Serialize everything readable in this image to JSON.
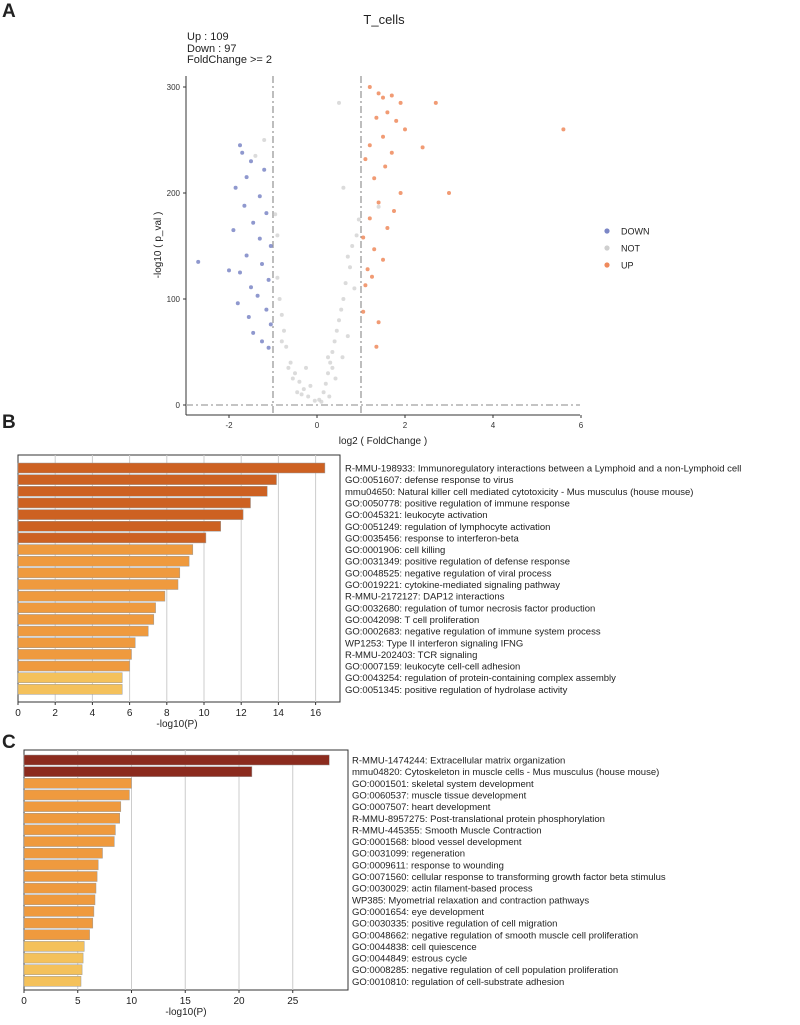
{
  "panels": {
    "a": "A",
    "b": "B",
    "c": "C"
  },
  "volcano": {
    "title": "T_cells",
    "info": {
      "up": "Up :  109",
      "down": "Down : 97",
      "fold": "FoldChange >= 2"
    },
    "xlabel": "log2 ( FoldChange )",
    "ylabel": "-log10 ( p_val )",
    "xticks": [
      "-2",
      "0",
      "2",
      "4",
      "6"
    ],
    "yticks": [
      "0",
      "100",
      "200",
      "300"
    ],
    "legend": [
      {
        "label": "DOWN",
        "color": "#7b86c6"
      },
      {
        "label": "NOT",
        "color": "#cfcfcf"
      },
      {
        "label": "UP",
        "color": "#ef8a5c"
      }
    ]
  },
  "chart_data": [
    {
      "type": "scatter",
      "title": "T_cells",
      "xlabel": "log2 ( FoldChange )",
      "ylabel": "-log10 ( p_val )",
      "xlim": [
        -3.1,
        6
      ],
      "ylim": [
        -10,
        310
      ],
      "thresholds": {
        "x": [
          -1,
          1
        ],
        "y": 0
      },
      "series": [
        {
          "name": "UP",
          "color": "#ef8a5c",
          "points": [
            [
              5.6,
              260
            ],
            [
              3.0,
              200
            ],
            [
              2.7,
              285
            ],
            [
              2.4,
              243
            ],
            [
              1.2,
              300
            ],
            [
              1.4,
              294
            ],
            [
              1.5,
              290
            ],
            [
              1.7,
              292
            ],
            [
              1.9,
              285
            ],
            [
              1.6,
              276
            ],
            [
              1.35,
              271
            ],
            [
              1.8,
              268
            ],
            [
              2.0,
              260
            ],
            [
              1.5,
              253
            ],
            [
              1.2,
              245
            ],
            [
              1.7,
              238
            ],
            [
              1.1,
              232
            ],
            [
              1.55,
              225
            ],
            [
              1.3,
              214
            ],
            [
              1.9,
              200
            ],
            [
              1.4,
              191
            ],
            [
              1.75,
              183
            ],
            [
              1.2,
              176
            ],
            [
              1.6,
              167
            ],
            [
              1.05,
              158
            ],
            [
              1.3,
              147
            ],
            [
              1.5,
              137
            ],
            [
              1.15,
              128
            ],
            [
              1.25,
              121
            ],
            [
              1.1,
              113
            ],
            [
              1.4,
              78
            ],
            [
              1.35,
              55
            ],
            [
              1.05,
              88
            ]
          ]
        },
        {
          "name": "DOWN",
          "color": "#7b86c6",
          "points": [
            [
              -2.7,
              135
            ],
            [
              -2.0,
              127
            ],
            [
              -1.75,
              245
            ],
            [
              -1.7,
              238
            ],
            [
              -1.5,
              230
            ],
            [
              -1.2,
              222
            ],
            [
              -1.6,
              215
            ],
            [
              -1.85,
              205
            ],
            [
              -1.3,
              197
            ],
            [
              -1.65,
              188
            ],
            [
              -1.15,
              181
            ],
            [
              -1.45,
              172
            ],
            [
              -1.9,
              165
            ],
            [
              -1.3,
              157
            ],
            [
              -1.05,
              150
            ],
            [
              -1.6,
              141
            ],
            [
              -1.25,
              133
            ],
            [
              -1.75,
              125
            ],
            [
              -1.1,
              118
            ],
            [
              -1.5,
              111
            ],
            [
              -1.35,
              103
            ],
            [
              -1.8,
              96
            ],
            [
              -1.15,
              90
            ],
            [
              -1.55,
              83
            ],
            [
              -1.05,
              76
            ],
            [
              -1.45,
              68
            ],
            [
              -1.25,
              60
            ],
            [
              -1.1,
              54
            ]
          ]
        },
        {
          "name": "NOT",
          "color": "#cfcfcf",
          "points": [
            [
              0.8,
              150
            ],
            [
              0.7,
              140
            ],
            [
              0.75,
              130
            ],
            [
              0.65,
              115
            ],
            [
              0.6,
              100
            ],
            [
              0.55,
              90
            ],
            [
              0.5,
              80
            ],
            [
              0.45,
              70
            ],
            [
              0.4,
              60
            ],
            [
              0.35,
              50
            ],
            [
              0.3,
              40
            ],
            [
              0.25,
              30
            ],
            [
              0.2,
              20
            ],
            [
              0.15,
              12
            ],
            [
              0.05,
              5
            ],
            [
              -0.05,
              4
            ],
            [
              -0.2,
              8
            ],
            [
              -0.3,
              15
            ],
            [
              -0.4,
              22
            ],
            [
              -0.5,
              30
            ],
            [
              -0.6,
              40
            ],
            [
              -0.7,
              55
            ],
            [
              -0.75,
              70
            ],
            [
              -0.8,
              85
            ],
            [
              -0.85,
              100
            ],
            [
              -0.9,
              120
            ],
            [
              -0.55,
              25
            ],
            [
              -0.45,
              12
            ],
            [
              0.95,
              175
            ],
            [
              0.9,
              160
            ],
            [
              -0.9,
              160
            ],
            [
              -0.95,
              180
            ],
            [
              -0.65,
              35
            ],
            [
              0.58,
              45
            ],
            [
              0.42,
              25
            ],
            [
              -0.35,
              10
            ],
            [
              0.1,
              3
            ],
            [
              0.28,
              8
            ],
            [
              0.7,
              65
            ],
            [
              -0.8,
              60
            ],
            [
              -1.2,
              250
            ],
            [
              -1.4,
              235
            ],
            [
              0.5,
              285
            ],
            [
              1.4,
              187
            ],
            [
              0.6,
              205
            ],
            [
              0.25,
              45
            ],
            [
              0.35,
              35
            ],
            [
              -0.25,
              35
            ],
            [
              -0.15,
              18
            ],
            [
              0.85,
              110
            ]
          ]
        }
      ]
    },
    {
      "type": "bar",
      "orientation": "horizontal",
      "xlabel": "-log10(P)",
      "xlim": [
        0,
        17.5
      ],
      "xticks": [
        "0",
        "2",
        "4",
        "6",
        "8",
        "10",
        "12",
        "14",
        "16"
      ],
      "categories": [
        "R-MMU-198933: Immunoregulatory interactions between a Lymphoid and a non-Lymphoid cell",
        "GO:0051607: defense response to virus",
        "mmu04650: Natural killer cell mediated cytotoxicity - Mus musculus (house mouse)",
        "GO:0050778: positive regulation of immune response",
        "GO:0045321: leukocyte activation",
        "GO:0051249: regulation of lymphocyte activation",
        "GO:0035456: response to interferon-beta",
        "GO:0001906: cell killing",
        "GO:0031349: positive regulation of defense response",
        "GO:0048525: negative regulation of viral process",
        "GO:0019221: cytokine-mediated signaling pathway",
        "R-MMU-2172127: DAP12 interactions",
        "GO:0032680: regulation of tumor necrosis factor production",
        "GO:0042098: T cell proliferation",
        "GO:0002683: negative regulation of immune system process",
        "WP1253: Type II interferon signaling IFNG",
        "R-MMU-202403: TCR signaling",
        "GO:0007159: leukocyte cell-cell adhesion",
        "GO:0043254: regulation of protein-containing complex assembly",
        "GO:0051345: positive regulation of hydrolase activity"
      ],
      "values": [
        16.5,
        13.9,
        13.4,
        12.5,
        12.1,
        10.9,
        10.1,
        9.4,
        9.2,
        8.7,
        8.6,
        7.9,
        7.4,
        7.3,
        7.0,
        6.3,
        6.1,
        6.0,
        5.6,
        5.6
      ],
      "colors": [
        "#cd6122",
        "#cd6122",
        "#cd6122",
        "#cd6122",
        "#cd6122",
        "#cd6122",
        "#cd6122",
        "#ef9a3e",
        "#ef9a3e",
        "#ef9a3e",
        "#ef9a3e",
        "#ef9a3e",
        "#ef9a3e",
        "#ef9a3e",
        "#ef9a3e",
        "#ef9a3e",
        "#ef9a3e",
        "#ef9a3e",
        "#f4c15b",
        "#f4c15b"
      ]
    },
    {
      "type": "bar",
      "orientation": "horizontal",
      "xlabel": "-log10(P)",
      "xlim": [
        0,
        30
      ],
      "xticks": [
        "0",
        "5",
        "10",
        "15",
        "20",
        "25"
      ],
      "categories": [
        "R-MMU-1474244: Extracellular matrix organization",
        "mmu04820: Cytoskeleton in muscle cells - Mus musculus (house mouse)",
        "GO:0001501: skeletal system development",
        "GO:0060537: muscle tissue development",
        "GO:0007507: heart development",
        "R-MMU-8957275: Post-translational protein phosphorylation",
        "R-MMU-445355: Smooth Muscle Contraction",
        "GO:0001568: blood vessel development",
        "GO:0031099: regeneration",
        "GO:0009611: response to wounding",
        "GO:0071560: cellular response to transforming growth factor beta stimulus",
        "GO:0030029: actin filament-based process",
        "WP385: Myometrial relaxation and contraction pathways",
        "GO:0001654: eye development",
        "GO:0030335: positive regulation of cell migration",
        "GO:0048662: negative regulation of smooth muscle cell proliferation",
        "GO:0044838: cell quiescence",
        "GO:0044849: estrous cycle",
        "GO:0008285: negative regulation of cell population proliferation",
        "GO:0010810: regulation of cell-substrate adhesion"
      ],
      "values": [
        28.4,
        21.2,
        10.0,
        9.8,
        9.0,
        8.9,
        8.5,
        8.4,
        7.3,
        6.9,
        6.8,
        6.7,
        6.6,
        6.5,
        6.4,
        6.1,
        5.6,
        5.5,
        5.4,
        5.3
      ],
      "colors": [
        "#8b2b1e",
        "#8b2b1e",
        "#ef9a3e",
        "#ef9a3e",
        "#ef9a3e",
        "#ef9a3e",
        "#ef9a3e",
        "#ef9a3e",
        "#ef9a3e",
        "#ef9a3e",
        "#ef9a3e",
        "#ef9a3e",
        "#ef9a3e",
        "#ef9a3e",
        "#ef9a3e",
        "#ef9a3e",
        "#f4c15b",
        "#f4c15b",
        "#f4c15b",
        "#f4c15b"
      ]
    }
  ]
}
